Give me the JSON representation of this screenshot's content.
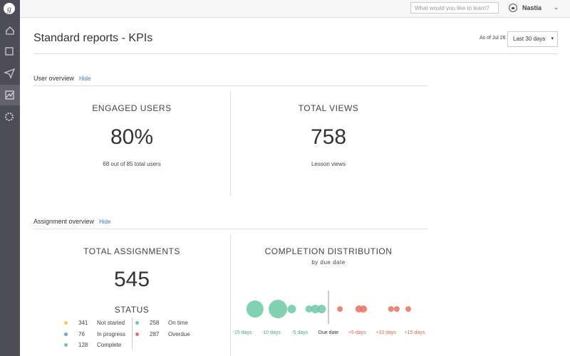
{
  "topbar": {
    "search_placeholder": "What would you like to learn?",
    "user": "Nastia"
  },
  "header": {
    "title": "Standard reports - KPIs",
    "as_of": "As of Jul 26",
    "range": "Last 30 days"
  },
  "user_overview": {
    "title": "User overview",
    "toggle": "Hide",
    "cards": [
      {
        "title": "ENGAGED USERS",
        "value": "80%",
        "caption": "68 out of 85 total users"
      },
      {
        "title": "TOTAL VIEWS",
        "value": "758",
        "caption": "Lesson views"
      }
    ]
  },
  "assignment_overview": {
    "title": "Assignment overview",
    "toggle": "Hide",
    "total": {
      "title": "TOTAL ASSIGNMENTS",
      "value": "545",
      "status_title": "STATUS"
    },
    "status": [
      {
        "value": "341",
        "label": "Not started",
        "color": "#f2c94c"
      },
      {
        "value": "76",
        "label": "In progress",
        "color": "#6aa7d6"
      },
      {
        "value": "128",
        "label": "Complete",
        "color": "#6cc9a3"
      },
      {
        "value": "258",
        "label": "On time",
        "color": "#6cc9a3"
      },
      {
        "value": "287",
        "label": "Overdue",
        "color": "#e8735f"
      }
    ],
    "distribution": {
      "title": "COMPLETION DISTRIBUTION",
      "subtitle": "by due date",
      "chart_data": {
        "type": "bubble",
        "xlim": [
          -16.5,
          16.5
        ],
        "xticks": [
          {
            "value": -15,
            "label": "-15 days"
          },
          {
            "value": -10,
            "label": "-10 days"
          },
          {
            "value": -5,
            "label": "-5 days"
          },
          {
            "value": 0,
            "label": "Due date"
          },
          {
            "value": 5,
            "label": "+5 days"
          },
          {
            "value": 10,
            "label": "+10 days"
          },
          {
            "value": 15,
            "label": "+15 days"
          }
        ],
        "series": [
          {
            "name": "On time",
            "color": "#6cc9a3",
            "x": [
              -12.8,
              -8.8,
              -6.4,
              -3.4,
              -2.3,
              -1.2
            ],
            "sizes": [
              12,
              13,
              6,
              5,
              6,
              6
            ]
          },
          {
            "name": "Overdue",
            "color": "#e8735f",
            "x": [
              2,
              5.3,
              6.1,
              10.9,
              11.9,
              13.9
            ],
            "sizes": [
              4,
              5,
              5,
              4,
              4,
              4
            ]
          }
        ]
      }
    }
  }
}
